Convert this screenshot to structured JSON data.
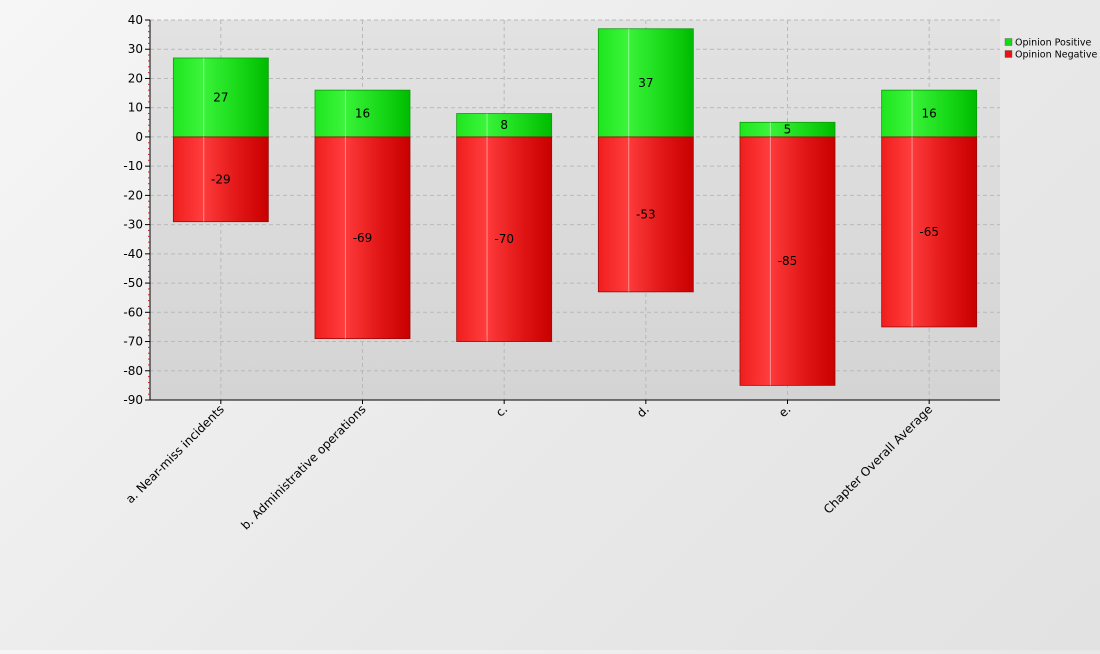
{
  "chart_data": {
    "type": "bar",
    "stacked": true,
    "categories": [
      "a. Near-miss incidents",
      "b. Administrative operations",
      "c.",
      "d.",
      "e.",
      "Chapter Overall Average"
    ],
    "series": [
      {
        "name": "Opinion Positive",
        "color": "#11dd11",
        "values": [
          27,
          16,
          8,
          37,
          5,
          16
        ]
      },
      {
        "name": "Opinion Negative",
        "color": "#ee1111",
        "values": [
          -29,
          -69,
          -70,
          -53,
          -85,
          -65
        ]
      }
    ],
    "ylim": [
      -90,
      40
    ],
    "yticks": [
      40,
      30,
      20,
      10,
      0,
      -10,
      -20,
      -30,
      -40,
      -50,
      -60,
      -70,
      -80,
      -90
    ],
    "grid": true,
    "legend_position": "top-right",
    "title": "",
    "xlabel": "",
    "ylabel": ""
  }
}
